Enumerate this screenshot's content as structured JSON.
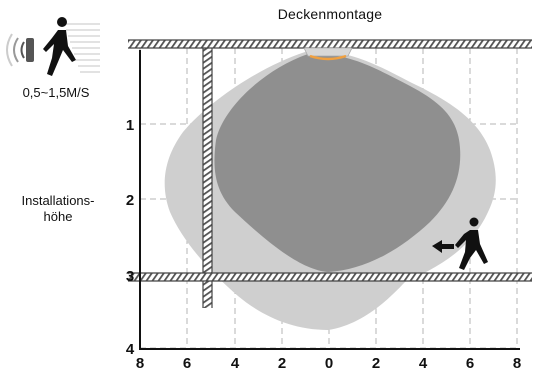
{
  "title": "Deckenmontage",
  "speed_label": "0,5~1,5M/S",
  "installation_label_line1": "Installations-",
  "installation_label_line2": "höhe",
  "y_axis_labels": [
    "1",
    "2",
    "3",
    "4"
  ],
  "x_axis_labels": [
    "8",
    "6",
    "4",
    "2",
    "0",
    "2",
    "4",
    "6",
    "8"
  ],
  "colors": {
    "inner_zone": "#8f8f8f",
    "outer_zone": "#cfcfcf",
    "grid": "#b5b5b5",
    "hatch": "#555555",
    "sensor": "#f0a040"
  },
  "icons": [
    "motion-waves-icon",
    "walking-person-icon",
    "left-arrow-icon",
    "walking-person-icon"
  ]
}
